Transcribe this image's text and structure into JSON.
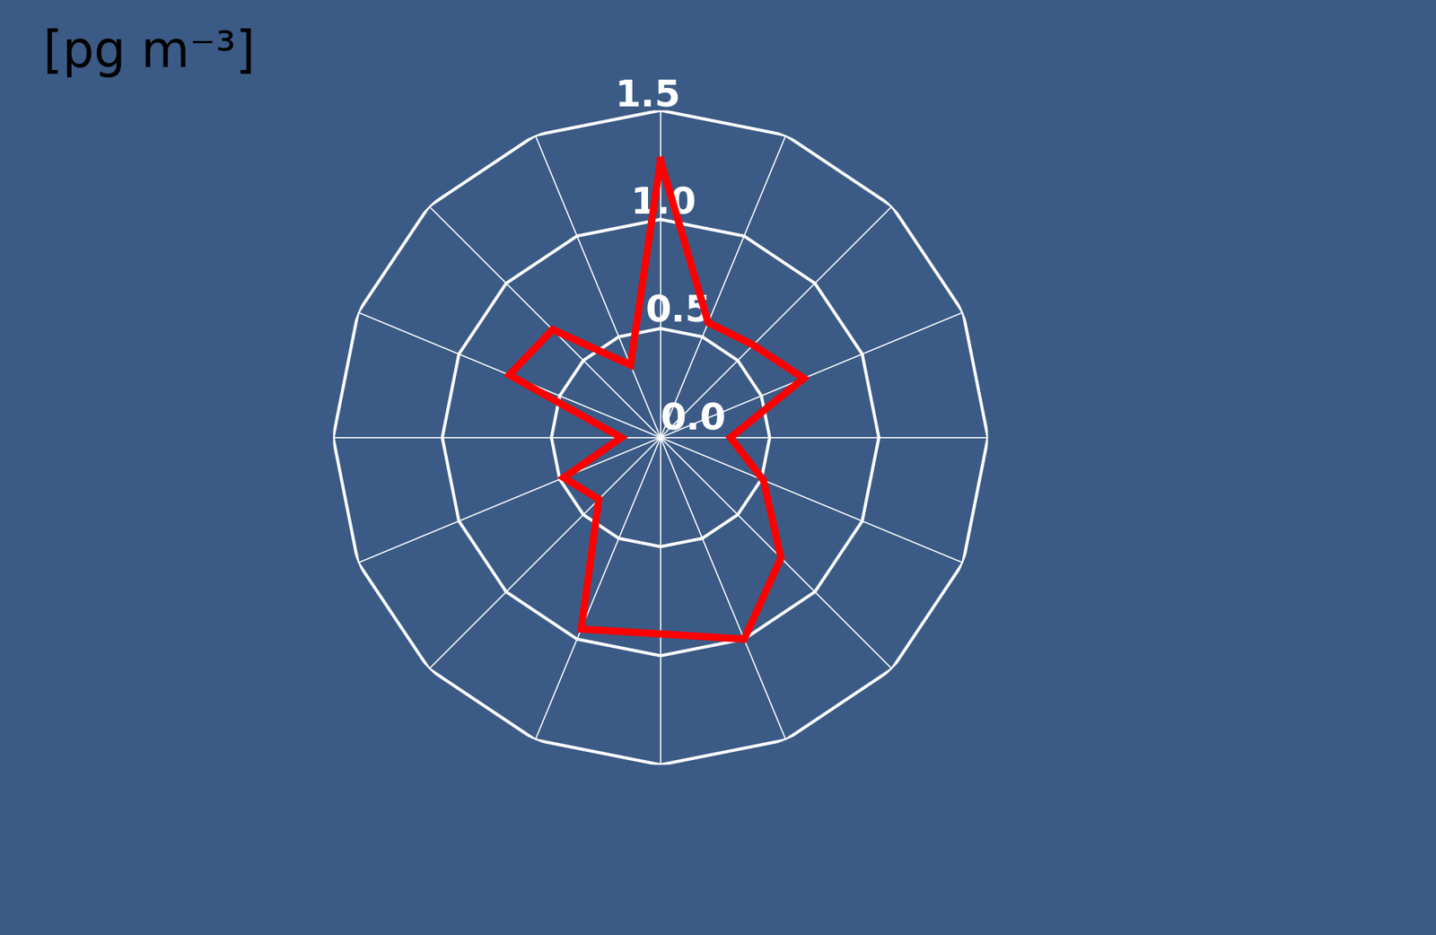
{
  "chart_data": {
    "type": "radar",
    "unit_label": "[pg m⁻³]",
    "categories": [
      null,
      null,
      null,
      null,
      null,
      null,
      null,
      null,
      null,
      null,
      null,
      null,
      null,
      null,
      null,
      null
    ],
    "values": [
      1.27,
      0.57,
      0.6,
      0.71,
      0.32,
      0.51,
      0.78,
      1.0,
      0.9,
      0.95,
      0.4,
      0.48,
      0.18,
      0.75,
      0.7,
      0.36
    ],
    "color": "#ff0000",
    "ylim": [
      0,
      1.5
    ],
    "yticks": [
      {
        "value": 0,
        "label": "0.0"
      },
      {
        "value": 0.5,
        "label": "0.5"
      },
      {
        "value": 1.0,
        "label": "1.0"
      },
      {
        "value": 1.5,
        "label": "1.5"
      }
    ],
    "grid": true,
    "tick_labels": "y"
  }
}
